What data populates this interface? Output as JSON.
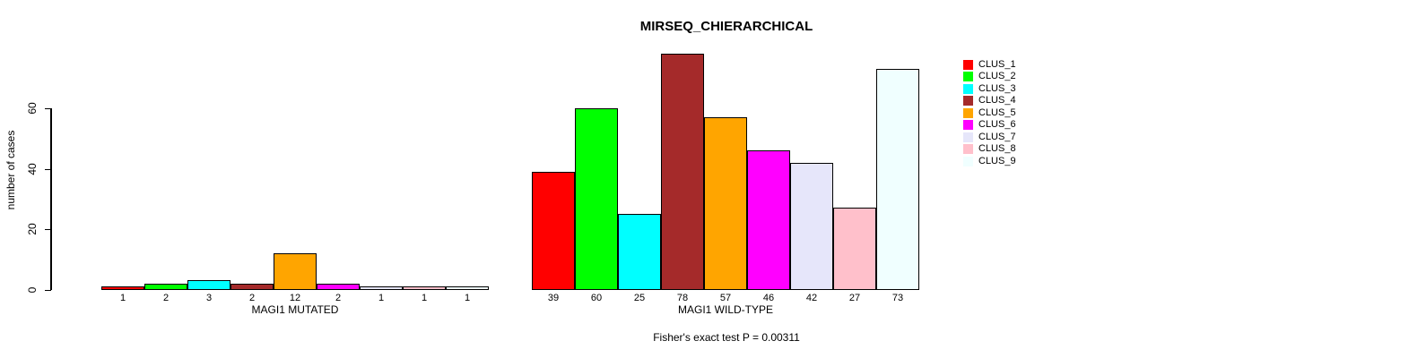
{
  "chart_data": {
    "type": "bar",
    "title": "MIRSEQ_CHIERARCHICAL",
    "ylabel": "number of cases",
    "footer": "Fisher's exact test P = 0.00311",
    "yticks": [
      0,
      20,
      40,
      60
    ],
    "ylim": [
      0,
      78
    ],
    "grid": false,
    "legend_position": "top-right",
    "clusters": [
      {
        "name": "CLUS_1",
        "color": "#FF0000"
      },
      {
        "name": "CLUS_2",
        "color": "#00FF00"
      },
      {
        "name": "CLUS_3",
        "color": "#00FFFF"
      },
      {
        "name": "CLUS_4",
        "color": "#A52A2A"
      },
      {
        "name": "CLUS_5",
        "color": "#FFA500"
      },
      {
        "name": "CLUS_6",
        "color": "#FF00FF"
      },
      {
        "name": "CLUS_7",
        "color": "#E6E6FA"
      },
      {
        "name": "CLUS_8",
        "color": "#FFC0CB"
      },
      {
        "name": "CLUS_9",
        "color": "#F0FFFF"
      }
    ],
    "groups": [
      {
        "label": "MAGI1 MUTATED",
        "values": [
          1,
          2,
          3,
          2,
          12,
          2,
          1,
          1,
          1
        ]
      },
      {
        "label": "MAGI1 WILD-TYPE",
        "values": [
          39,
          60,
          25,
          78,
          57,
          46,
          42,
          27,
          73
        ]
      }
    ]
  }
}
